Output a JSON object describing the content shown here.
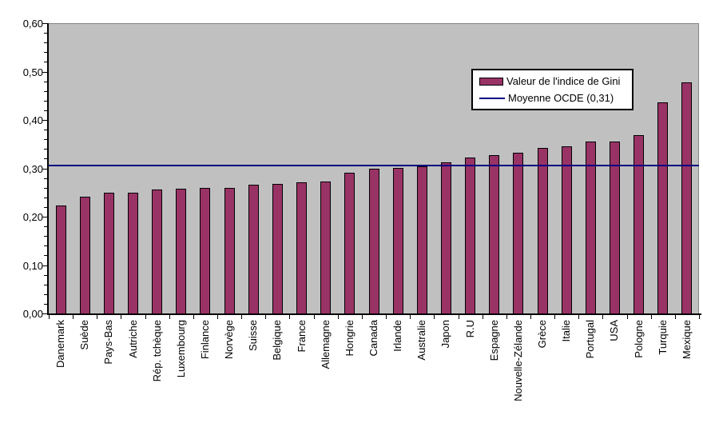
{
  "colors": {
    "bar_fill": "#993366",
    "bar_border": "#000000",
    "plot_bg": "#C0C0C0",
    "plot_border": "#848484",
    "avg_line": "#000080",
    "axis": "#000000",
    "legend_bg": "#FFFFFF",
    "page_bg": "#FFFFFF"
  },
  "legend": {
    "gini_label": "Valeur de l'indice de Gini",
    "ocde_label": "Moyenne OCDE (0,31)"
  },
  "chart_data": {
    "type": "bar",
    "title": "",
    "xlabel": "",
    "ylabel": "",
    "categories": [
      "Danemark",
      "Suède",
      "Pays-Bas",
      "Autriche",
      "Rép. tchèque",
      "Luxembourg",
      "Finlance",
      "Norvège",
      "Suisse",
      "Belgique",
      "France",
      "Allemagne",
      "Hongrie",
      "Canada",
      "Irlande",
      "Australie",
      "Japon",
      "R.U",
      "Espagne",
      "Nouvelle-Zélande",
      "Grèce",
      "Italie",
      "Portugal",
      "USA",
      "Pologne",
      "Turquie",
      "Mexique"
    ],
    "values": [
      0.223,
      0.241,
      0.25,
      0.25,
      0.257,
      0.258,
      0.259,
      0.259,
      0.266,
      0.268,
      0.271,
      0.273,
      0.291,
      0.299,
      0.301,
      0.304,
      0.312,
      0.323,
      0.328,
      0.333,
      0.342,
      0.345,
      0.355,
      0.356,
      0.368,
      0.437,
      0.478
    ],
    "series_name": "Valeur de l'indice de Gini",
    "reference_line": {
      "name": "Moyenne OCDE (0,31)",
      "value": 0.305,
      "label_value_text": "0,31"
    },
    "ylim": [
      0,
      0.6
    ],
    "ytick_values": [
      0,
      0.1,
      0.2,
      0.3,
      0.4,
      0.5,
      0.6
    ],
    "ytick_labels": [
      "0,00",
      "0,10",
      "0,20",
      "0,30",
      "0,40",
      "0,50",
      "0,60"
    ],
    "minor_tick_interval": 0.02,
    "grid": false,
    "legend_position": "inside-upper-right",
    "plot_background": "gray",
    "bar_label_rotation_deg": 90
  }
}
